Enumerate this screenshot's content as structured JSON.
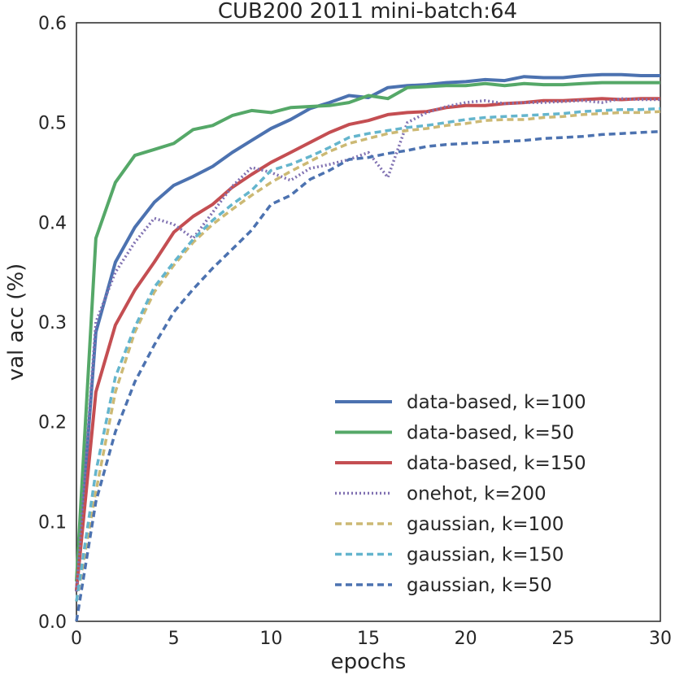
{
  "chart_data": {
    "type": "line",
    "title": "CUB200 2011 mini-batch:64",
    "xlabel": "epochs",
    "ylabel": "val acc (%)",
    "xlim": [
      0,
      30
    ],
    "ylim": [
      0.0,
      0.6
    ],
    "xticks": [
      0,
      5,
      10,
      15,
      20,
      25,
      30
    ],
    "yticks": [
      0.0,
      0.1,
      0.2,
      0.3,
      0.4,
      0.5,
      0.6
    ],
    "xtick_labels": [
      "0",
      "5",
      "10",
      "15",
      "20",
      "25",
      "30"
    ],
    "ytick_labels": [
      "0.0",
      "0.1",
      "0.2",
      "0.3",
      "0.4",
      "0.5",
      "0.6"
    ],
    "grid": false,
    "legend_position": "lower-right",
    "x": [
      0,
      1,
      2,
      3,
      4,
      5,
      6,
      7,
      8,
      9,
      10,
      11,
      12,
      13,
      14,
      15,
      16,
      17,
      18,
      19,
      20,
      21,
      22,
      23,
      24,
      25,
      26,
      27,
      28,
      29,
      30
    ],
    "series": [
      {
        "name": "data-based, k=100",
        "color": "#4c72b0",
        "style": "solid",
        "values": [
          0.03,
          0.29,
          0.36,
          0.395,
          0.42,
          0.437,
          0.446,
          0.456,
          0.47,
          0.482,
          0.494,
          0.503,
          0.514,
          0.52,
          0.527,
          0.525,
          0.535,
          0.537,
          0.538,
          0.54,
          0.541,
          0.543,
          0.542,
          0.546,
          0.545,
          0.545,
          0.547,
          0.548,
          0.548,
          0.547,
          0.547
        ]
      },
      {
        "name": "data-based, k=50",
        "color": "#55a868",
        "style": "solid",
        "values": [
          0.04,
          0.384,
          0.44,
          0.467,
          0.473,
          0.479,
          0.493,
          0.497,
          0.507,
          0.512,
          0.51,
          0.515,
          0.516,
          0.517,
          0.52,
          0.527,
          0.524,
          0.535,
          0.536,
          0.537,
          0.537,
          0.539,
          0.537,
          0.539,
          0.538,
          0.538,
          0.539,
          0.54,
          0.54,
          0.54,
          0.54
        ]
      },
      {
        "name": "data-based, k=150",
        "color": "#c44e52",
        "style": "solid",
        "values": [
          0.03,
          0.23,
          0.297,
          0.332,
          0.36,
          0.39,
          0.406,
          0.418,
          0.435,
          0.448,
          0.46,
          0.47,
          0.48,
          0.49,
          0.498,
          0.502,
          0.508,
          0.51,
          0.511,
          0.515,
          0.517,
          0.517,
          0.519,
          0.52,
          0.522,
          0.522,
          0.523,
          0.524,
          0.523,
          0.524,
          0.524
        ]
      },
      {
        "name": "onehot, k=200",
        "color": "#8172b2",
        "style": "dotted",
        "values": [
          0.03,
          0.3,
          0.35,
          0.38,
          0.404,
          0.398,
          0.384,
          0.41,
          0.436,
          0.455,
          0.45,
          0.442,
          0.454,
          0.458,
          0.463,
          0.47,
          0.445,
          0.5,
          0.51,
          0.516,
          0.52,
          0.522,
          0.519,
          0.52,
          0.52,
          0.521,
          0.522,
          0.52,
          0.524,
          0.523,
          0.523
        ]
      },
      {
        "name": "gaussian, k=100",
        "color": "#ccb974",
        "style": "dashed",
        "values": [
          0.02,
          0.13,
          0.23,
          0.29,
          0.33,
          0.357,
          0.38,
          0.398,
          0.413,
          0.427,
          0.44,
          0.451,
          0.461,
          0.471,
          0.479,
          0.484,
          0.489,
          0.492,
          0.494,
          0.497,
          0.499,
          0.502,
          0.503,
          0.503,
          0.505,
          0.506,
          0.508,
          0.509,
          0.51,
          0.51,
          0.511
        ]
      },
      {
        "name": "gaussian, k=150",
        "color": "#64b5cd",
        "style": "dashed",
        "values": [
          0.02,
          0.15,
          0.245,
          0.295,
          0.335,
          0.36,
          0.383,
          0.402,
          0.418,
          0.432,
          0.452,
          0.458,
          0.466,
          0.475,
          0.485,
          0.489,
          0.492,
          0.495,
          0.497,
          0.5,
          0.503,
          0.505,
          0.506,
          0.507,
          0.508,
          0.509,
          0.511,
          0.512,
          0.513,
          0.513,
          0.514
        ]
      },
      {
        "name": "gaussian, k=50",
        "color": "#4c72b0",
        "style": "dashed",
        "values": [
          0.0,
          0.12,
          0.19,
          0.24,
          0.277,
          0.31,
          0.333,
          0.354,
          0.373,
          0.392,
          0.418,
          0.427,
          0.443,
          0.452,
          0.463,
          0.465,
          0.469,
          0.472,
          0.476,
          0.478,
          0.479,
          0.48,
          0.481,
          0.482,
          0.484,
          0.485,
          0.486,
          0.488,
          0.489,
          0.49,
          0.491
        ]
      }
    ]
  }
}
